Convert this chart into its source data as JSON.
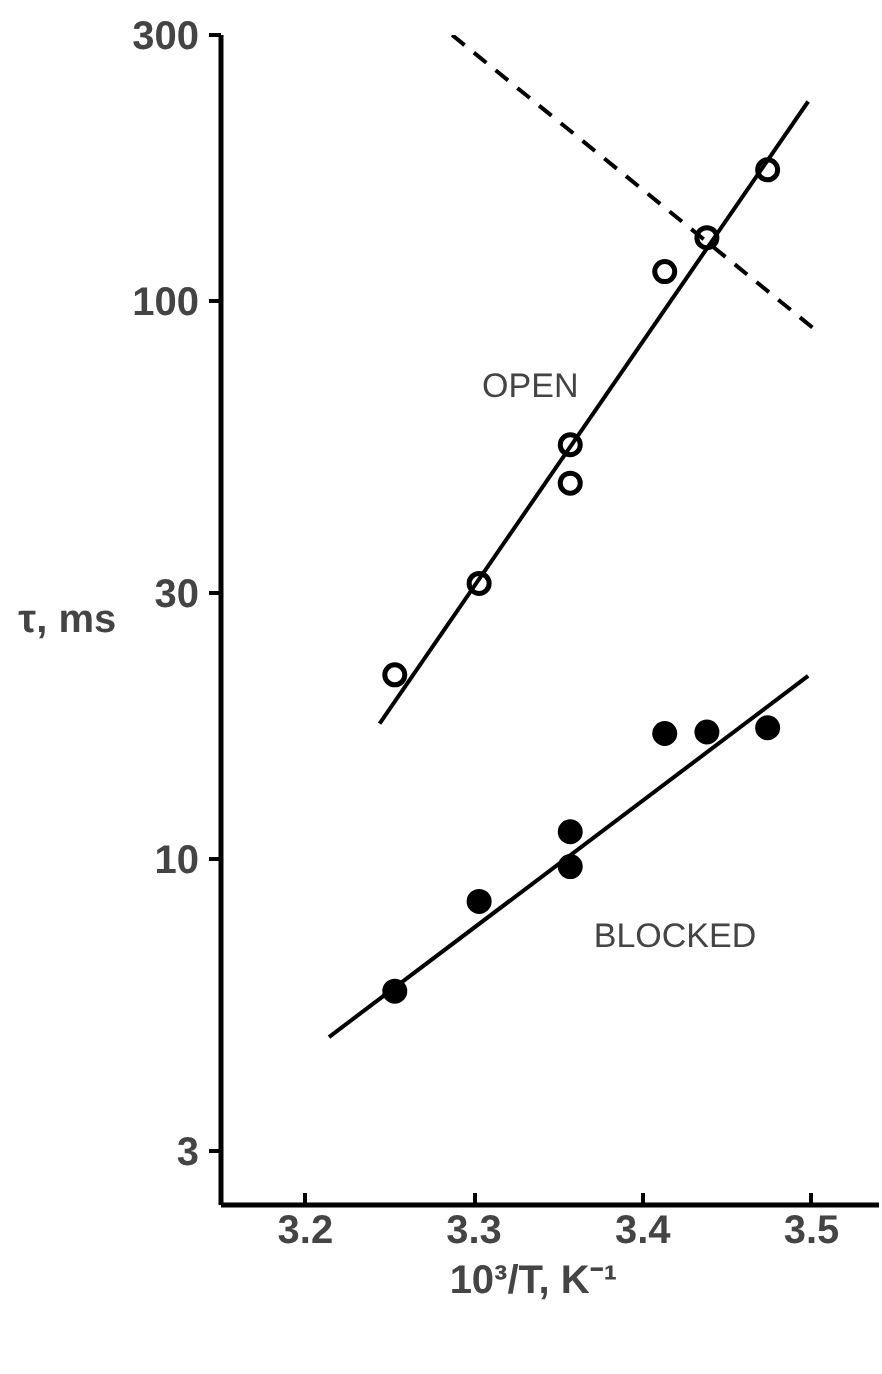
{
  "chart_data": {
    "type": "scatter",
    "xlabel": "10³/T,    K⁻¹",
    "ylabel": "τ, ms",
    "xlim": [
      3.15,
      3.54
    ],
    "ylim": [
      2.4,
      300
    ],
    "xticks": [
      3.2,
      3.3,
      3.4,
      3.5
    ],
    "yticks": [
      3,
      10,
      30,
      100,
      300
    ],
    "log": "y",
    "grid": false,
    "legend": false,
    "series": [
      {
        "marker": "circle",
        "color": "#ffffff",
        "x": [
          3.253,
          3.303,
          3.357,
          3.357,
          3.413,
          3.438,
          3.474
        ],
        "values": [
          21.4,
          31.2,
          55.3,
          47.2,
          113,
          130,
          172
        ]
      },
      {
        "type": "line",
        "color": "#000000",
        "line_style": "solid",
        "x": [
          3.244,
          3.498
        ],
        "values": [
          17.5,
          228
        ]
      },
      {
        "type": "line",
        "color": "#000000",
        "line_style": "dashed",
        "x": [
          3.287,
          3.502
        ],
        "values": [
          300,
          89
        ]
      },
      {
        "marker": "circle",
        "color": "#000000",
        "x": [
          3.253,
          3.303,
          3.357,
          3.357,
          3.413,
          3.438,
          3.474
        ],
        "values": [
          5.8,
          8.4,
          11.2,
          9.7,
          16.8,
          16.9,
          17.2
        ]
      },
      {
        "type": "line",
        "color": "#000000",
        "line_style": "solid",
        "x": [
          3.214,
          3.498
        ],
        "values": [
          4.8,
          21.3
        ]
      }
    ],
    "annotations": [
      "OPEN",
      "BLOCKED"
    ]
  }
}
